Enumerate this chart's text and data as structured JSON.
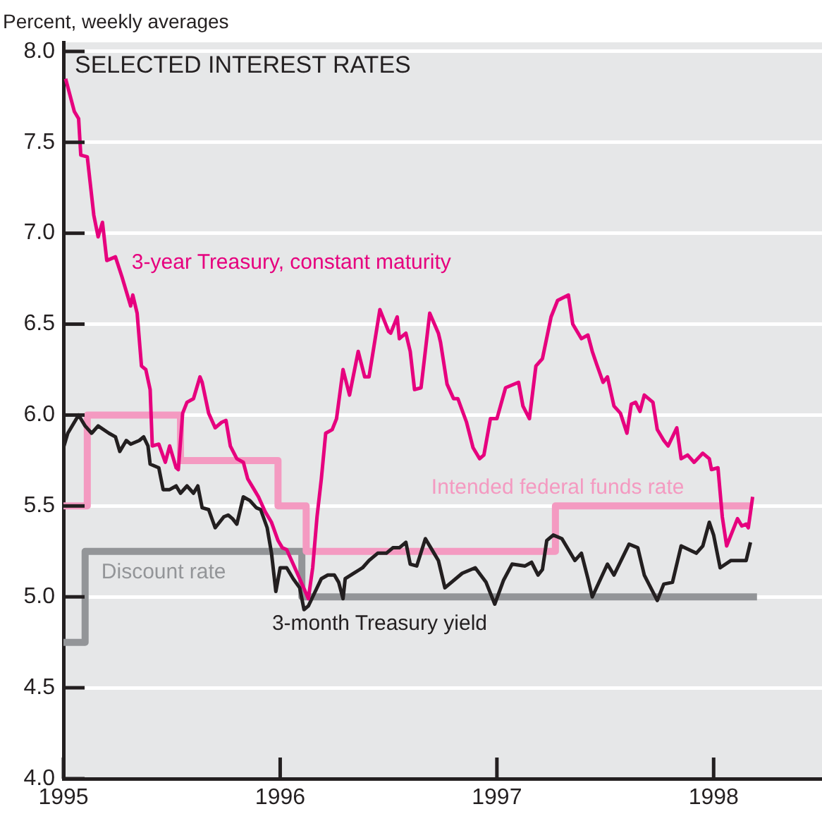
{
  "chart_data": {
    "type": "line",
    "title": "SELECTED INTEREST RATES",
    "ylabel": "Percent, weekly averages",
    "xlim": [
      1995,
      1998.5
    ],
    "xticks": [
      1995,
      1996,
      1997,
      1998
    ],
    "ylim": [
      4,
      8.05
    ],
    "yticks": [
      {
        "value": 4,
        "label": "4.0"
      },
      {
        "value": 4.5,
        "label": "4.5"
      },
      {
        "value": 5,
        "label": "5.0"
      },
      {
        "value": 5.5,
        "label": "5.5"
      },
      {
        "value": 6,
        "label": "6.0"
      },
      {
        "value": 6.5,
        "label": "6.5"
      },
      {
        "value": 7,
        "label": "7.0"
      },
      {
        "value": 7.5,
        "label": "7.5"
      },
      {
        "value": 8,
        "label": "8.0"
      }
    ],
    "grid": "y",
    "legend": false,
    "marker": "none",
    "line_style": "solid",
    "series": [
      {
        "name": "3-year Treasury, constant maturity",
        "color": "#e6007e",
        "x": [
          1995.01,
          1995.05,
          1995.07,
          1995.08,
          1995.11,
          1995.14,
          1995.16,
          1995.18,
          1995.2,
          1995.24,
          1995.27,
          1995.31,
          1995.32,
          1995.34,
          1995.36,
          1995.38,
          1995.4,
          1995.41,
          1995.44,
          1995.47,
          1995.49,
          1995.52,
          1995.53,
          1995.55,
          1995.57,
          1995.6,
          1995.63,
          1995.64,
          1995.67,
          1995.7,
          1995.73,
          1995.75,
          1995.77,
          1995.8,
          1995.83,
          1995.85,
          1995.88,
          1995.9,
          1995.93,
          1995.96,
          1995.99,
          1996.01,
          1996.03,
          1996.06,
          1996.09,
          1996.13,
          1996.15,
          1996.17,
          1996.19,
          1996.21,
          1996.24,
          1996.26,
          1996.29,
          1996.32,
          1996.36,
          1996.39,
          1996.41,
          1996.46,
          1996.5,
          1996.51,
          1996.54,
          1996.55,
          1996.58,
          1996.6,
          1996.62,
          1996.65,
          1996.69,
          1996.73,
          1996.74,
          1996.77,
          1996.8,
          1996.82,
          1996.86,
          1996.89,
          1996.92,
          1996.94,
          1996.97,
          1997,
          1997.04,
          1997.1,
          1997.12,
          1997.15,
          1997.18,
          1997.21,
          1997.25,
          1997.28,
          1997.33,
          1997.35,
          1997.39,
          1997.42,
          1997.44,
          1997.46,
          1997.49,
          1997.51,
          1997.54,
          1997.57,
          1997.6,
          1997.62,
          1997.64,
          1997.66,
          1997.68,
          1997.72,
          1997.74,
          1997.77,
          1997.79,
          1997.83,
          1997.85,
          1997.88,
          1997.91,
          1997.95,
          1997.98,
          1997.99,
          1998.02,
          1998.04,
          1998.06,
          1998.11,
          1998.13,
          1998.15,
          1998.16,
          1998.18
        ],
        "values": [
          7.85,
          7.67,
          7.63,
          7.43,
          7.42,
          7.1,
          6.98,
          7.06,
          6.85,
          6.87,
          6.76,
          6.6,
          6.66,
          6.56,
          6.27,
          6.25,
          6.14,
          5.83,
          5.84,
          5.74,
          5.83,
          5.71,
          5.7,
          6.01,
          6.07,
          6.09,
          6.21,
          6.18,
          6.01,
          5.93,
          5.96,
          5.97,
          5.83,
          5.76,
          5.74,
          5.65,
          5.59,
          5.55,
          5.47,
          5.41,
          5.31,
          5.27,
          5.26,
          5.18,
          5.1,
          4.99,
          5.16,
          5.44,
          5.65,
          5.9,
          5.92,
          5.98,
          6.25,
          6.11,
          6.35,
          6.21,
          6.21,
          6.58,
          6.46,
          6.45,
          6.54,
          6.42,
          6.45,
          6.35,
          6.14,
          6.15,
          6.56,
          6.45,
          6.4,
          6.17,
          6.09,
          6.09,
          5.96,
          5.82,
          5.76,
          5.78,
          5.98,
          5.98,
          6.15,
          6.18,
          6.05,
          5.98,
          6.27,
          6.31,
          6.54,
          6.63,
          6.66,
          6.5,
          6.42,
          6.44,
          6.35,
          6.28,
          6.18,
          6.21,
          6.05,
          6.01,
          5.9,
          6.06,
          6.07,
          6.02,
          6.11,
          6.07,
          5.92,
          5.86,
          5.83,
          5.93,
          5.76,
          5.78,
          5.74,
          5.79,
          5.76,
          5.7,
          5.71,
          5.44,
          5.28,
          5.43,
          5.39,
          5.4,
          5.38,
          5.55
        ]
      },
      {
        "name": "Intended federal funds rate",
        "color": "#f49ac1",
        "type": "step",
        "x": [
          1995,
          1995.11,
          1995.54,
          1995.99,
          1996.12,
          1997.27,
          1998.18
        ],
        "values": [
          5.5,
          6.0,
          5.75,
          5.5,
          5.25,
          5.5,
          5.5
        ]
      },
      {
        "name": "Discount rate",
        "color": "#939598",
        "type": "step",
        "x": [
          1995,
          1995.1,
          1996.1,
          1998.2
        ],
        "values": [
          4.75,
          5.25,
          5.0,
          5.0
        ]
      },
      {
        "name": "3-month Treasury yield",
        "color": "#231f20",
        "x": [
          1995,
          1995.02,
          1995.07,
          1995.1,
          1995.13,
          1995.16,
          1995.21,
          1995.24,
          1995.26,
          1995.29,
          1995.31,
          1995.35,
          1995.37,
          1995.39,
          1995.4,
          1995.44,
          1995.46,
          1995.49,
          1995.52,
          1995.54,
          1995.57,
          1995.6,
          1995.62,
          1995.64,
          1995.67,
          1995.7,
          1995.74,
          1995.76,
          1995.78,
          1995.8,
          1995.83,
          1995.86,
          1995.89,
          1995.91,
          1995.94,
          1995.96,
          1995.98,
          1996,
          1996.03,
          1996.06,
          1996.09,
          1996.11,
          1996.13,
          1996.15,
          1996.19,
          1996.22,
          1996.25,
          1996.27,
          1996.29,
          1996.3,
          1996.34,
          1996.38,
          1996.41,
          1996.45,
          1996.49,
          1996.52,
          1996.55,
          1996.58,
          1996.6,
          1996.63,
          1996.67,
          1996.71,
          1996.73,
          1996.76,
          1996.84,
          1996.9,
          1996.95,
          1996.99,
          1997.03,
          1997.07,
          1997.13,
          1997.16,
          1997.19,
          1997.21,
          1997.23,
          1997.26,
          1997.3,
          1997.33,
          1997.36,
          1997.39,
          1997.42,
          1997.44,
          1997.51,
          1997.54,
          1997.61,
          1997.65,
          1997.68,
          1997.74,
          1997.77,
          1997.81,
          1997.85,
          1997.92,
          1997.95,
          1997.98,
          1998,
          1998.03,
          1998.08,
          1998.11,
          1998.15,
          1998.17
        ],
        "values": [
          5.82,
          5.9,
          6.0,
          5.94,
          5.9,
          5.94,
          5.9,
          5.88,
          5.8,
          5.86,
          5.84,
          5.86,
          5.88,
          5.83,
          5.73,
          5.71,
          5.59,
          5.59,
          5.61,
          5.57,
          5.61,
          5.57,
          5.61,
          5.49,
          5.48,
          5.38,
          5.44,
          5.45,
          5.43,
          5.4,
          5.55,
          5.53,
          5.49,
          5.48,
          5.38,
          5.24,
          5.03,
          5.16,
          5.16,
          5.1,
          5.05,
          4.93,
          4.95,
          5.0,
          5.1,
          5.12,
          5.12,
          5.08,
          4.99,
          5.1,
          5.13,
          5.16,
          5.2,
          5.24,
          5.24,
          5.27,
          5.27,
          5.3,
          5.18,
          5.17,
          5.32,
          5.24,
          5.2,
          5.05,
          5.13,
          5.16,
          5.08,
          4.96,
          5.09,
          5.18,
          5.17,
          5.19,
          5.12,
          5.15,
          5.31,
          5.34,
          5.32,
          5.26,
          5.2,
          5.24,
          5.1,
          5.0,
          5.18,
          5.12,
          5.29,
          5.27,
          5.12,
          4.98,
          5.07,
          5.08,
          5.28,
          5.24,
          5.28,
          5.41,
          5.34,
          5.16,
          5.2,
          5.2,
          5.2,
          5.3
        ]
      }
    ]
  }
}
